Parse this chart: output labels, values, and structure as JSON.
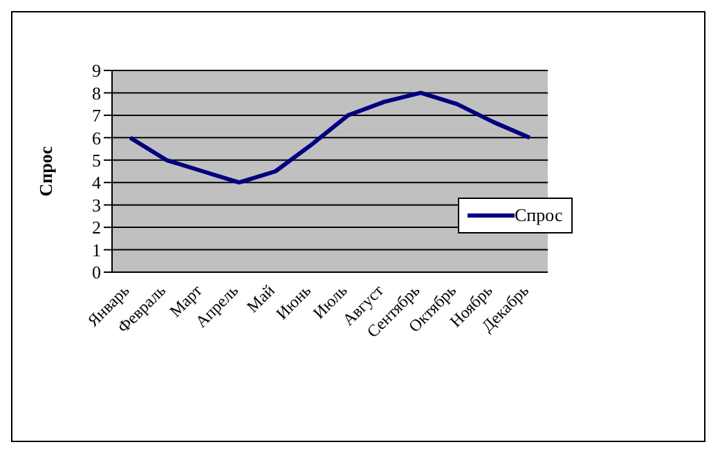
{
  "chart_data": {
    "type": "line",
    "ylabel": "Спрос",
    "categories": [
      "Январь",
      "Февраль",
      "Март",
      "Апрель",
      "Май",
      "Июнь",
      "Июль",
      "Август",
      "Сентябрь",
      "Октябрь",
      "Ноябрь",
      "Декабрь"
    ],
    "series": [
      {
        "name": "Спрос",
        "color": "#000080",
        "values": [
          6,
          5,
          4.5,
          4,
          4.5,
          5.7,
          7,
          7.6,
          8,
          7.5,
          6.7,
          6
        ]
      }
    ],
    "ylim": [
      0,
      9
    ],
    "yticks": [
      0,
      1,
      2,
      3,
      4,
      5,
      6,
      7,
      8,
      9
    ],
    "grid": "y",
    "legend": "right",
    "marker": "none",
    "line_style": "solid"
  }
}
